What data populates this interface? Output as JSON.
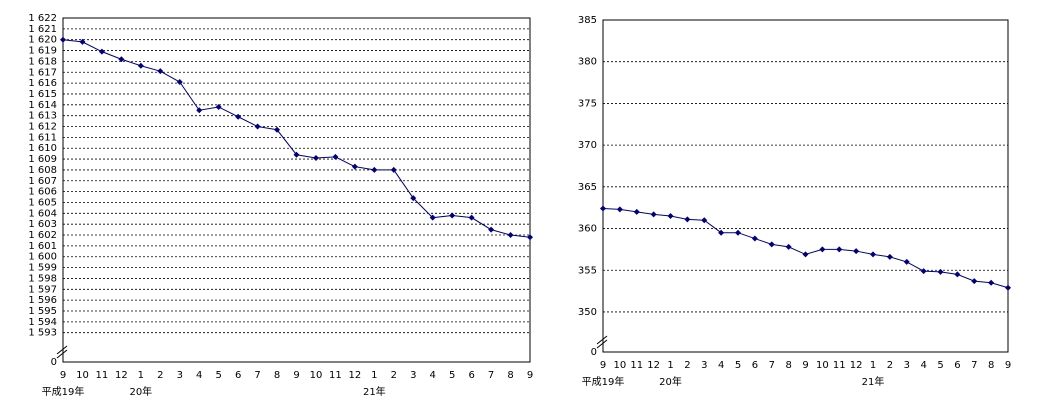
{
  "chart_data": [
    {
      "type": "line",
      "color": "#000080",
      "grid": true,
      "categories": [
        "9",
        "10",
        "11",
        "12",
        "1",
        "2",
        "3",
        "4",
        "5",
        "6",
        "7",
        "8",
        "9",
        "10",
        "11",
        "12",
        "1",
        "2",
        "3",
        "4",
        "5",
        "6",
        "7",
        "8",
        "9"
      ],
      "category_groups": [
        {
          "start": 0,
          "label": "平成19年"
        },
        {
          "start": 4,
          "label": "20年"
        },
        {
          "start": 16,
          "label": "21年"
        }
      ],
      "values": [
        1620.0,
        1619.8,
        1618.9,
        1618.2,
        1617.6,
        1617.1,
        1616.1,
        1613.5,
        1613.8,
        1612.9,
        1612.0,
        1611.7,
        1609.4,
        1609.1,
        1609.2,
        1608.3,
        1608.0,
        1608.0,
        1605.4,
        1603.6,
        1603.8,
        1603.6,
        1602.5,
        1602.0,
        1601.8
      ],
      "ylim": [
        1590.3,
        1622
      ],
      "yticks": [
        {
          "value": 1593,
          "label": "1 593"
        },
        {
          "value": 1594,
          "label": "1 594"
        },
        {
          "value": 1595,
          "label": "1 595"
        },
        {
          "value": 1596,
          "label": "1 596"
        },
        {
          "value": 1597,
          "label": "1 597"
        },
        {
          "value": 1598,
          "label": "1 598"
        },
        {
          "value": 1599,
          "label": "1 599"
        },
        {
          "value": 1600,
          "label": "1 600"
        },
        {
          "value": 1601,
          "label": "1 601"
        },
        {
          "value": 1602,
          "label": "1 602"
        },
        {
          "value": 1603,
          "label": "1 603"
        },
        {
          "value": 1604,
          "label": "1 604"
        },
        {
          "value": 1605,
          "label": "1 605"
        },
        {
          "value": 1606,
          "label": "1 606"
        },
        {
          "value": 1607,
          "label": "1 607"
        },
        {
          "value": 1608,
          "label": "1 608"
        },
        {
          "value": 1609,
          "label": "1 609"
        },
        {
          "value": 1610,
          "label": "1 610"
        },
        {
          "value": 1611,
          "label": "1 611"
        },
        {
          "value": 1612,
          "label": "1 612"
        },
        {
          "value": 1613,
          "label": "1 613"
        },
        {
          "value": 1614,
          "label": "1 614"
        },
        {
          "value": 1615,
          "label": "1 615"
        },
        {
          "value": 1616,
          "label": "1 616"
        },
        {
          "value": 1617,
          "label": "1 617"
        },
        {
          "value": 1618,
          "label": "1 618"
        },
        {
          "value": 1619,
          "label": "1 619"
        },
        {
          "value": 1620,
          "label": "1 620"
        },
        {
          "value": 1621,
          "label": "1 621"
        },
        {
          "value": 1622,
          "label": "1 622"
        }
      ],
      "ybreak": 0
    },
    {
      "type": "line",
      "color": "#000080",
      "grid": true,
      "categories": [
        "9",
        "10",
        "11",
        "12",
        "1",
        "2",
        "3",
        "4",
        "5",
        "6",
        "7",
        "8",
        "9",
        "10",
        "11",
        "12",
        "1",
        "2",
        "3",
        "4",
        "5",
        "6",
        "7",
        "8",
        "9"
      ],
      "category_groups": [
        {
          "start": 0,
          "label": "平成19年"
        },
        {
          "start": 4,
          "label": "20年"
        },
        {
          "start": 16,
          "label": "21年"
        }
      ],
      "values": [
        362.4,
        362.3,
        362.0,
        361.7,
        361.5,
        361.1,
        361.0,
        359.5,
        359.5,
        358.8,
        358.1,
        357.8,
        356.9,
        357.5,
        357.5,
        357.3,
        356.9,
        356.6,
        356.0,
        354.9,
        354.8,
        354.5,
        353.7,
        353.5,
        352.9
      ],
      "ylim": [
        345.2,
        385
      ],
      "yticks": [
        350,
        355,
        360,
        365,
        370,
        375,
        380,
        385
      ],
      "ybreak": 0
    }
  ]
}
